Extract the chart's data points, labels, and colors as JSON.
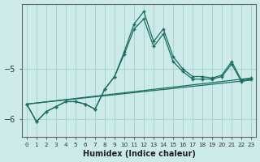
{
  "xlabel": "Humidex (Indice chaleur)",
  "ylabel": "",
  "background_color": "#cceae8",
  "grid_color": "#aad4d0",
  "line_color": "#1a6e62",
  "x_values": [
    0,
    1,
    2,
    3,
    4,
    5,
    6,
    7,
    8,
    9,
    10,
    11,
    12,
    13,
    14,
    15,
    16,
    17,
    18,
    19,
    20,
    21,
    22,
    23
  ],
  "series1": [
    -5.7,
    -6.05,
    -5.85,
    -5.75,
    -5.65,
    -5.65,
    -5.7,
    -5.8,
    -5.4,
    -5.15,
    -4.7,
    -4.2,
    -4.0,
    -4.55,
    -4.3,
    -4.85,
    -5.05,
    -5.2,
    -5.2,
    -5.2,
    -5.15,
    -4.9,
    -5.25,
    -5.2
  ],
  "series2": [
    -5.7,
    -6.05,
    -5.85,
    -5.75,
    -5.65,
    -5.65,
    -5.7,
    -5.8,
    -5.4,
    -5.15,
    -4.65,
    -4.1,
    -3.85,
    -4.45,
    -4.2,
    -4.75,
    -5.0,
    -5.15,
    -5.15,
    -5.18,
    -5.12,
    -4.85,
    -5.22,
    -5.18
  ],
  "series3_x": [
    0,
    23
  ],
  "series3_y": [
    -5.7,
    -5.18
  ],
  "series4_x": [
    0,
    23
  ],
  "series4_y": [
    -5.7,
    -5.22
  ],
  "ylim": [
    -6.35,
    -3.7
  ],
  "yticks": [
    -6,
    -5
  ],
  "xlim": [
    -0.5,
    23.5
  ]
}
